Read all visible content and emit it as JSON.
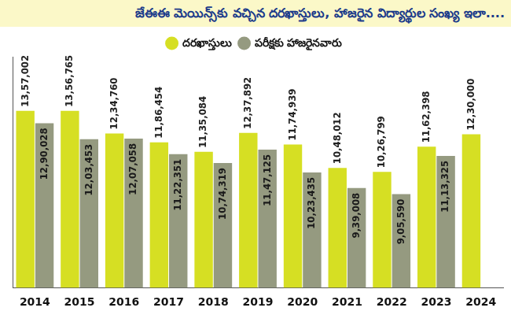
{
  "chart_data": {
    "type": "bar",
    "title": "జేఈఈ మెయిన్స్‌కు వచ్చిన దరఖాస్తులు, హాజరైన విద్యార్థుల సంఖ్య ఇలా....",
    "categories": [
      "2014",
      "2015",
      "2016",
      "2017",
      "2018",
      "2019",
      "2020",
      "2021",
      "2022",
      "2023",
      "2024"
    ],
    "series": [
      {
        "name": "దరఖాస్తులు",
        "color": "#d6df23",
        "values": [
          1357002,
          1356765,
          1234760,
          1186454,
          1135084,
          1237892,
          1174939,
          1048012,
          1026799,
          1162398,
          1230000
        ],
        "value_labels": [
          "13,57,002",
          "13,56,765",
          "12,34,760",
          "11,86,454",
          "11,35,084",
          "12,37,892",
          "11,74,939",
          "10,48,012",
          "10,26,799",
          "11,62,398",
          "12,30,000"
        ]
      },
      {
        "name": "పరీక్షకు హాజరైనవారు",
        "color": "#959a80",
        "values": [
          1290028,
          1203453,
          1207058,
          1122351,
          1074319,
          1147125,
          1023435,
          939008,
          905590,
          1113325,
          null
        ],
        "value_labels": [
          "12,90,028",
          "12,03,453",
          "12,07,058",
          "11,22,351",
          "10,74,319",
          "11,47,125",
          "10,23,435",
          "9,39,008",
          "9,05,590",
          "11,13,325",
          null
        ]
      }
    ],
    "ylim": [
      400000,
      1650000
    ],
    "grid": false,
    "legend": "top",
    "data_labels": true,
    "tick_labels": "x"
  }
}
